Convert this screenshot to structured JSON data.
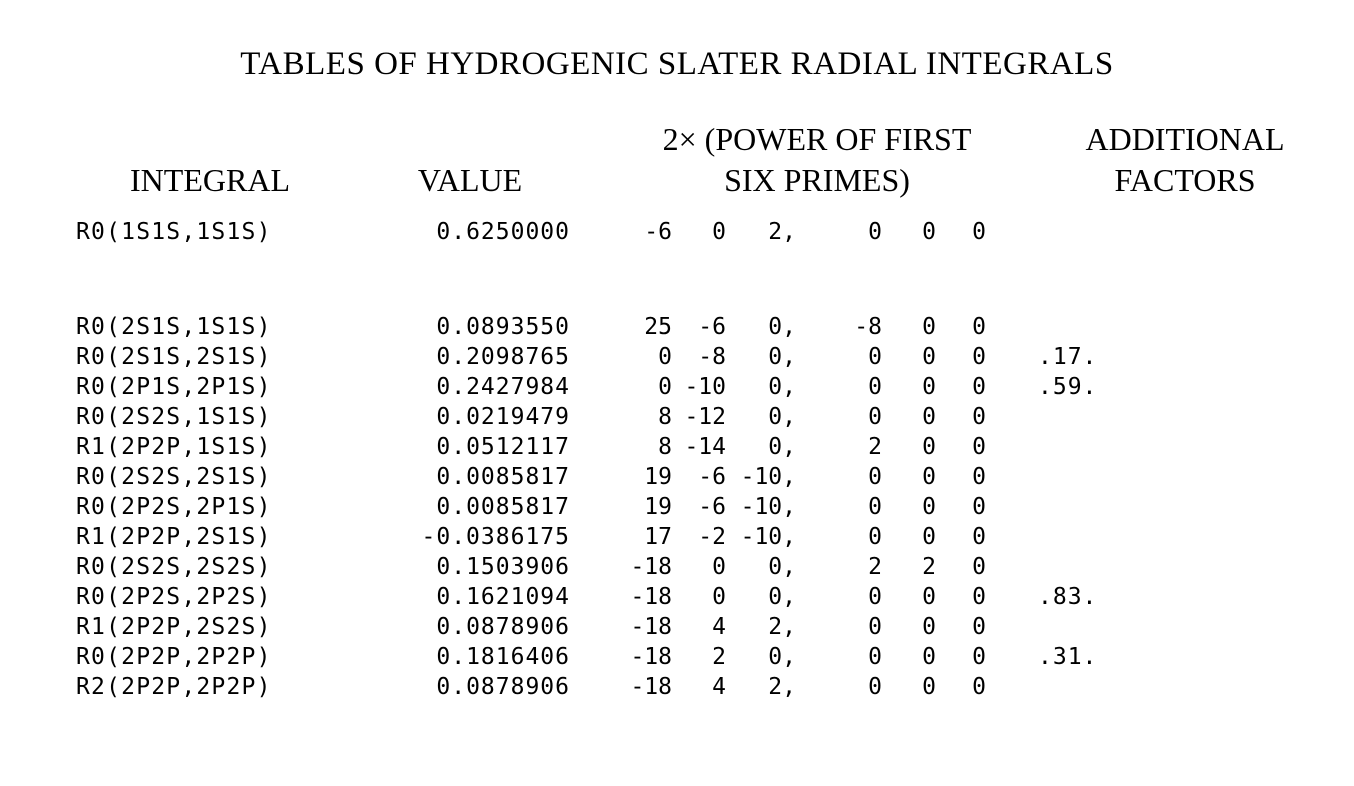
{
  "title": "TABLES OF HYDROGENIC SLATER RADIAL INTEGRALS",
  "headers": {
    "integral": "INTEGRAL",
    "value": "VALUE",
    "powers_line1": "2× (POWER OF FIRST",
    "powers_line2": "SIX PRIMES)",
    "additional_line1": "ADDITIONAL",
    "additional_line2": "FACTORS"
  },
  "rows": [
    {
      "integral": "R0(1S1S,1S1S)",
      "value": "0.6250000",
      "p": [
        "-6",
        "0",
        "2,",
        "0",
        "0",
        "0"
      ],
      "additional": ""
    },
    {
      "integral": "R0(2S1S,1S1S)",
      "value": "0.0893550",
      "p": [
        "25",
        "-6",
        "0,",
        "-8",
        "0",
        "0"
      ],
      "additional": ""
    },
    {
      "integral": "R0(2S1S,2S1S)",
      "value": "0.2098765",
      "p": [
        "0",
        "-8",
        "0,",
        "0",
        "0",
        "0"
      ],
      "additional": ".17."
    },
    {
      "integral": "R0(2P1S,2P1S)",
      "value": "0.2427984",
      "p": [
        "0",
        "-10",
        "0,",
        "0",
        "0",
        "0"
      ],
      "additional": ".59."
    },
    {
      "integral": "R0(2S2S,1S1S)",
      "value": "0.0219479",
      "p": [
        "8",
        "-12",
        "0,",
        "0",
        "0",
        "0"
      ],
      "additional": ""
    },
    {
      "integral": "R1(2P2P,1S1S)",
      "value": "0.0512117",
      "p": [
        "8",
        "-14",
        "0,",
        "2",
        "0",
        "0"
      ],
      "additional": ""
    },
    {
      "integral": "R0(2S2S,2S1S)",
      "value": "0.0085817",
      "p": [
        "19",
        "-6",
        "-10,",
        "0",
        "0",
        "0"
      ],
      "additional": ""
    },
    {
      "integral": "R0(2P2S,2P1S)",
      "value": "0.0085817",
      "p": [
        "19",
        "-6",
        "-10,",
        "0",
        "0",
        "0"
      ],
      "additional": ""
    },
    {
      "integral": "R1(2P2P,2S1S)",
      "value": "-0.0386175",
      "p": [
        "17",
        "-2",
        "-10,",
        "0",
        "0",
        "0"
      ],
      "additional": ""
    },
    {
      "integral": "R0(2S2S,2S2S)",
      "value": "0.1503906",
      "p": [
        "-18",
        "0",
        "0,",
        "2",
        "2",
        "0"
      ],
      "additional": ""
    },
    {
      "integral": "R0(2P2S,2P2S)",
      "value": "0.1621094",
      "p": [
        "-18",
        "0",
        "0,",
        "0",
        "0",
        "0"
      ],
      "additional": ".83."
    },
    {
      "integral": "R1(2P2P,2S2S)",
      "value": "0.0878906",
      "p": [
        "-18",
        "4",
        "2,",
        "0",
        "0",
        "0"
      ],
      "additional": ""
    },
    {
      "integral": "R0(2P2P,2P2P)",
      "value": "0.1816406",
      "p": [
        "-18",
        "2",
        "0,",
        "0",
        "0",
        "0"
      ],
      "additional": ".31."
    },
    {
      "integral": "R2(2P2P,2P2P)",
      "value": "0.0878906",
      "p": [
        "-18",
        "4",
        "2,",
        "0",
        "0",
        "0"
      ],
      "additional": ""
    }
  ]
}
